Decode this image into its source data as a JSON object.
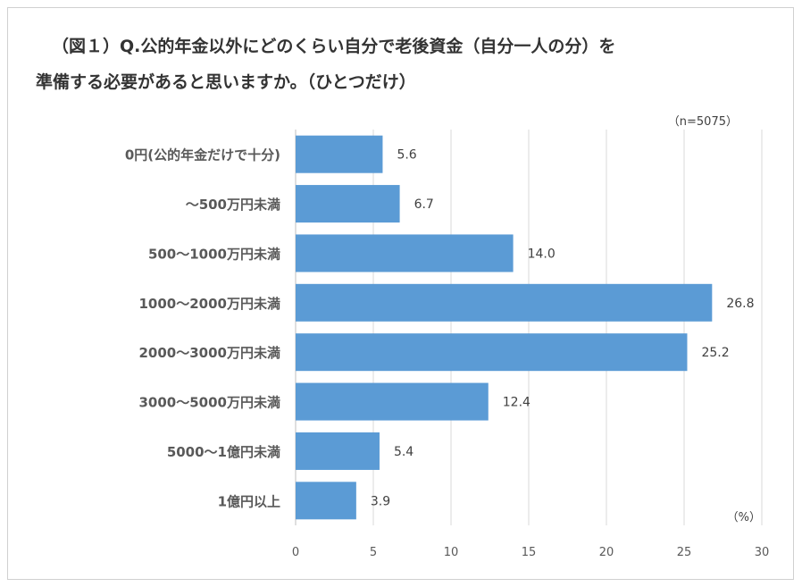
{
  "chart_data": {
    "type": "bar",
    "orientation": "horizontal",
    "title_lines": [
      "（図１）Q.公的年金以外にどのくらい自分で老後資金（自分一人の分）を",
      "準備する必要があると思いますか。（ひとつだけ）"
    ],
    "sample_note": "（n=5075）",
    "unit_label": "（%）",
    "categories": [
      "0円(公的年金だけで十分)",
      "～500万円未満",
      "500～1000万円未満",
      "1000～2000万円未満",
      "2000～3000万円未満",
      "3000～5000万円未満",
      "5000～1億円未満",
      "1億円以上"
    ],
    "values": [
      5.6,
      6.7,
      14.0,
      26.8,
      25.2,
      12.4,
      5.4,
      3.9
    ],
    "data_labels": [
      "5.6",
      "6.7",
      "14.0",
      "26.8",
      "25.2",
      "12.4",
      "5.4",
      "3.9"
    ],
    "xlim": [
      0,
      30
    ],
    "xticks": [
      "0",
      "5",
      "10",
      "15",
      "20",
      "25",
      "30"
    ],
    "grid": "vertical",
    "bar_color": "#5B9BD5",
    "legend": "none"
  }
}
